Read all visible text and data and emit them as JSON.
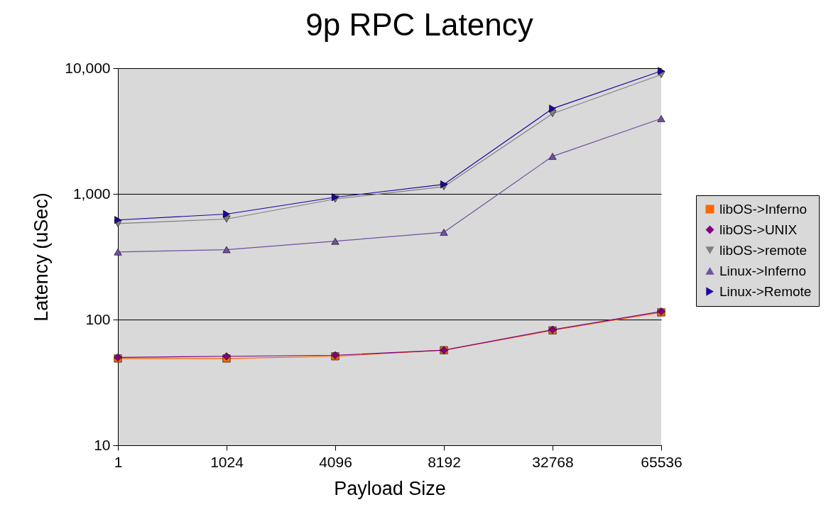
{
  "chart_data": {
    "type": "line",
    "title": "9p RPC Latency",
    "xlabel": "Payload Size",
    "ylabel": "Latency (uSec)",
    "categories": [
      "1",
      "1024",
      "4096",
      "8192",
      "32768",
      "65536"
    ],
    "series": [
      {
        "name": "libOS->Inferno",
        "color": "#ff6600",
        "marker": "square",
        "values": [
          49,
          49,
          51,
          57,
          82,
          114
        ]
      },
      {
        "name": "libOS->UNIX",
        "color": "#800080",
        "marker": "diamond",
        "values": [
          50,
          51,
          52,
          57,
          83,
          116
        ]
      },
      {
        "name": "libOS->remote",
        "color": "#808080",
        "marker": "triangle-down",
        "values": [
          580,
          630,
          910,
          1140,
          4350,
          8900
        ]
      },
      {
        "name": "Linux->Inferno",
        "color": "#7050a0",
        "marker": "triangle",
        "values": [
          345,
          360,
          420,
          495,
          1990,
          3970
        ]
      },
      {
        "name": "Linux->Remote",
        "color": "#2000a0",
        "marker": "triangle-right",
        "values": [
          620,
          690,
          940,
          1190,
          4770,
          9500
        ]
      }
    ],
    "log": true,
    "ylim": [
      10,
      10000
    ],
    "yticks": [
      {
        "value": 10,
        "label": "10"
      },
      {
        "value": 100,
        "label": "100"
      },
      {
        "value": 1000,
        "label": "1,000"
      },
      {
        "value": 10000,
        "label": "10,000"
      }
    ],
    "grid": "y",
    "legend": "right"
  }
}
